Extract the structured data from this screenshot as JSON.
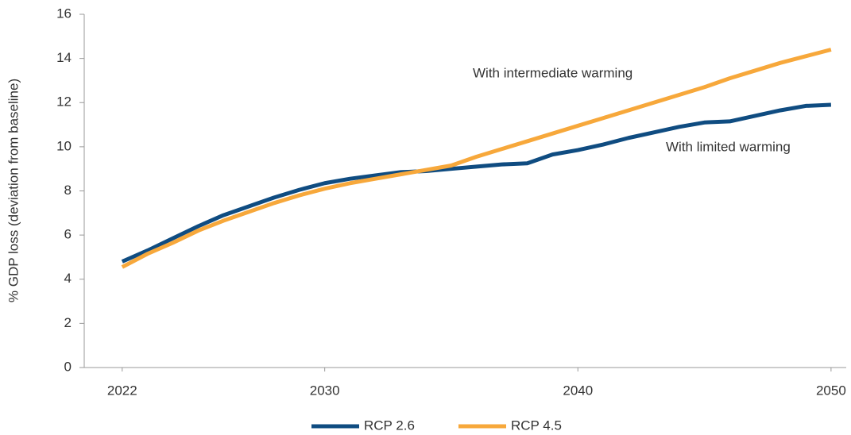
{
  "chart_data": {
    "type": "line",
    "y_label": "% GDP loss (deviation from baseline)",
    "annotations": [
      "With intermediate warming",
      "With limited warming"
    ],
    "x": [
      2022,
      2023,
      2024,
      2025,
      2026,
      2027,
      2028,
      2029,
      2030,
      2031,
      2032,
      2033,
      2034,
      2035,
      2036,
      2037,
      2038,
      2039,
      2040,
      2041,
      2042,
      2043,
      2044,
      2045,
      2046,
      2047,
      2048,
      2049,
      2050
    ],
    "series": [
      {
        "name": "RCP 2.6",
        "color": "#0f4c81",
        "values": [
          4.8,
          5.3,
          5.85,
          6.4,
          6.9,
          7.3,
          7.7,
          8.05,
          8.35,
          8.55,
          8.7,
          8.85,
          8.9,
          9.0,
          9.1,
          9.2,
          9.25,
          9.65,
          9.85,
          10.1,
          10.4,
          10.65,
          10.9,
          11.1,
          11.15,
          11.4,
          11.65,
          11.85,
          11.9
        ]
      },
      {
        "name": "RCP 4.5",
        "color": "#f7a83b",
        "values": [
          4.55,
          5.15,
          5.65,
          6.2,
          6.65,
          7.05,
          7.45,
          7.8,
          8.1,
          8.35,
          8.55,
          8.75,
          8.95,
          9.15,
          9.55,
          9.9,
          10.25,
          10.6,
          10.95,
          11.3,
          11.65,
          12.0,
          12.35,
          12.7,
          13.1,
          13.45,
          13.8,
          14.1,
          14.4
        ]
      }
    ],
    "xlim": [
      2020.5,
      2050.6
    ],
    "xticks": [
      2022,
      2030,
      2040,
      2050
    ],
    "ylim": [
      0,
      16
    ],
    "yticks": [
      0,
      2,
      4,
      6,
      8,
      10,
      12,
      14,
      16
    ],
    "grid": false,
    "legend": "bottom"
  }
}
